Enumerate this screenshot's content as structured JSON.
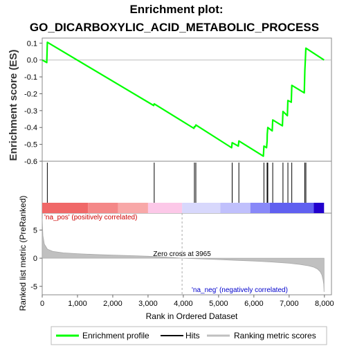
{
  "chart_data": {
    "type": "line",
    "title_line1": "Enrichment plot:",
    "title_line2": "GO_DICARBOXYLIC_ACID_METABOLIC_PROCESS",
    "es_ylabel": "Enrichment score (ES)",
    "metric_ylabel": "Ranked list metric (PreRanked)",
    "xlabel": "Rank in Ordered Dataset",
    "xlim": [
      0,
      8200
    ],
    "x_ticks": [
      0,
      1000,
      2000,
      3000,
      4000,
      5000,
      6000,
      7000,
      8000
    ],
    "x_tick_labels": [
      "0",
      "1,000",
      "2,000",
      "3,000",
      "4,000",
      "5,000",
      "6,000",
      "7,000",
      "8,000"
    ],
    "es_ylim": [
      -0.6,
      0.13
    ],
    "es_ticks": [
      0.1,
      0.0,
      -0.1,
      -0.2,
      -0.3,
      -0.4,
      -0.5,
      -0.6
    ],
    "es_tick_labels": [
      "0.1",
      "0.0",
      "-0.1",
      "-0.2",
      "-0.3",
      "-0.4",
      "-0.5",
      "-0.6"
    ],
    "metric_ylim": [
      -6.5,
      8
    ],
    "metric_ticks": [
      5,
      0,
      -5
    ],
    "metric_tick_labels": [
      "5",
      "0",
      "-5"
    ],
    "enrichment_profile": {
      "name": "Enrichment profile",
      "color": "#00ff00",
      "x": [
        0,
        130,
        145,
        3160,
        3175,
        4300,
        4315,
        4340,
        4355,
        5370,
        5385,
        5560,
        5575,
        6270,
        6285,
        6360,
        6375,
        6380,
        6395,
        6520,
        6535,
        6810,
        6825,
        6950,
        6965,
        7060,
        7075,
        7430,
        7445,
        7460,
        7475,
        7990
      ],
      "y": [
        0.0,
        -0.015,
        0.105,
        -0.27,
        -0.26,
        -0.405,
        -0.395,
        -0.395,
        -0.385,
        -0.52,
        -0.49,
        -0.51,
        -0.48,
        -0.57,
        -0.51,
        -0.52,
        -0.48,
        -0.44,
        -0.4,
        -0.42,
        -0.355,
        -0.39,
        -0.305,
        -0.33,
        -0.24,
        -0.25,
        -0.15,
        -0.195,
        -0.065,
        0.005,
        0.07,
        0.0
      ]
    },
    "hits": {
      "name": "Hits",
      "color": "#000000",
      "x": [
        145,
        3175,
        4315,
        4355,
        5385,
        5575,
        6285,
        6375,
        6395,
        6535,
        6825,
        6965,
        7075,
        7445,
        7475
      ]
    },
    "ranking_metric": {
      "name": "Ranking metric scores",
      "color": "#c0c0c0",
      "x": [
        0,
        20,
        60,
        150,
        300,
        600,
        1000,
        1500,
        2000,
        2500,
        3000,
        3500,
        3965,
        4500,
        5000,
        5500,
        6000,
        6500,
        7000,
        7300,
        7550,
        7700,
        7800,
        7880,
        7930,
        7960,
        7980,
        7990
      ],
      "y": [
        7.0,
        4.0,
        2.5,
        1.6,
        1.2,
        0.95,
        0.8,
        0.65,
        0.55,
        0.45,
        0.35,
        0.2,
        0.0,
        -0.12,
        -0.25,
        -0.38,
        -0.5,
        -0.68,
        -0.9,
        -1.1,
        -1.35,
        -1.6,
        -1.9,
        -2.4,
        -3.0,
        -3.8,
        -4.6,
        -6.0
      ]
    },
    "zero_cross": 3965,
    "zero_cross_label": "Zero cross at 3965",
    "pos_label": "'na_pos' (positively correlated)",
    "neg_label": "'na_neg' (negatively correlated)",
    "heat_bar": [
      {
        "from": 0,
        "to": 1300,
        "color": "#f06868"
      },
      {
        "from": 1300,
        "to": 2150,
        "color": "#f48888"
      },
      {
        "from": 2150,
        "to": 3000,
        "color": "#f8a8a8"
      },
      {
        "from": 3000,
        "to": 3965,
        "color": "#fcc8e8"
      },
      {
        "from": 3965,
        "to": 5050,
        "color": "#d8d8fc"
      },
      {
        "from": 5050,
        "to": 5900,
        "color": "#c0c0fc"
      },
      {
        "from": 5900,
        "to": 6450,
        "color": "#8888f8"
      },
      {
        "from": 6450,
        "to": 7700,
        "color": "#6060f0"
      },
      {
        "from": 7700,
        "to": 7990,
        "color": "#2200cc"
      }
    ],
    "legend": [
      {
        "label": "Enrichment profile",
        "color": "#00ff00"
      },
      {
        "label": "Hits",
        "color": "#000000"
      },
      {
        "label": "Ranking metric scores",
        "color": "#c0c0c0"
      }
    ]
  }
}
